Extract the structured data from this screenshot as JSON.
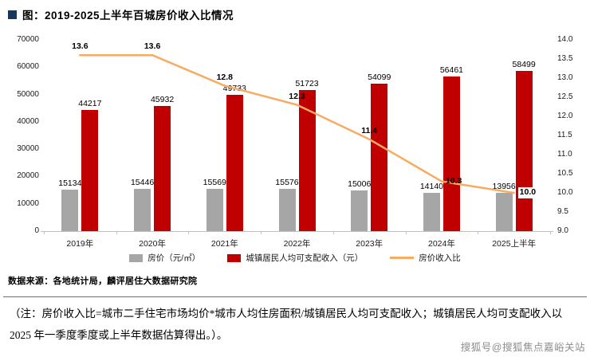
{
  "title": "图：2019-2025上半年百城房价收入比情况",
  "chart_data": {
    "type": "bar",
    "subtype": "grouped-bars-with-line-overlay",
    "categories": [
      "2019年",
      "2020年",
      "2021年",
      "2022年",
      "2023年",
      "2024年",
      "2025上半年"
    ],
    "series": [
      {
        "name": "房价（元/㎡）",
        "type": "bar",
        "axis": "left",
        "color": "#a6a6a6",
        "values": [
          15134,
          15446,
          15569,
          15576,
          15006,
          14140,
          13956
        ]
      },
      {
        "name": "城镇居民人均可支配收入（元）",
        "type": "bar",
        "axis": "left",
        "color": "#c00000",
        "values": [
          44217,
          45932,
          49733,
          51723,
          54099,
          56461,
          58499
        ]
      },
      {
        "name": "房价收入比",
        "type": "line",
        "axis": "right",
        "color": "#f7ab63",
        "values": [
          13.6,
          13.6,
          12.8,
          12.3,
          11.4,
          10.3,
          10.0
        ]
      }
    ],
    "left_axis": {
      "min": 0,
      "max": 70000,
      "ticks": [
        "0",
        "10000",
        "20000",
        "30000",
        "40000",
        "50000",
        "60000",
        "70000"
      ]
    },
    "right_axis": {
      "min": 9,
      "max": 14,
      "ticks": [
        "9.0",
        "9.5",
        "10.0",
        "10.5",
        "11.0",
        "11.5",
        "12.0",
        "12.5",
        "13.0",
        "13.5",
        "14.0"
      ]
    },
    "grid": false,
    "legend_position": "bottom"
  },
  "source": "数据来源：各地统计局，麟评居住大数据研究院",
  "note": "（注：房价收入比=城市二手住宅市场均价*城市人均住房面积/城镇居民人均可支配收入；城镇居民人均可支配收入以 2025 年一季度季度或上半年数据估算得出。）。",
  "watermark": "搜狐号@搜狐焦点嘉峪关站",
  "colors": {
    "title_bullet": "#17375e",
    "bar_gray": "#a6a6a6",
    "bar_red": "#c00000",
    "line_orange": "#f7ab63"
  }
}
